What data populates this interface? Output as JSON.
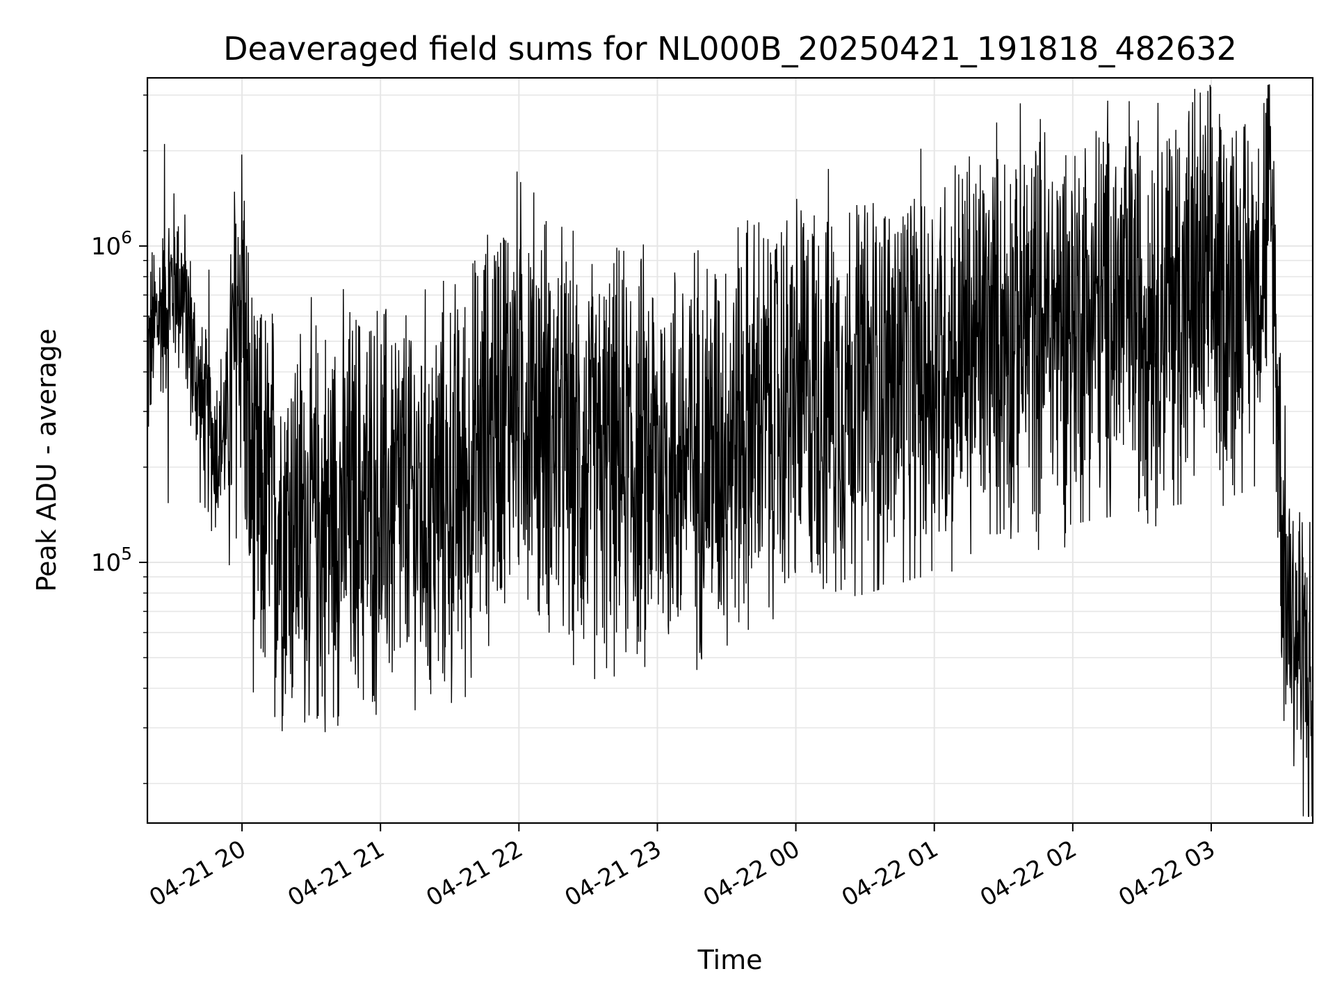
{
  "chart_data": {
    "type": "line",
    "title": "Deaveraged field sums for NL000B_20250421_191818_482632",
    "xlabel": "Time",
    "ylabel": "Peak ADU - average",
    "yscale": "log",
    "grid": true,
    "line_color": "#000000",
    "grid_color": "#e6e6e6",
    "xlim": [
      "2025-04-21 19:19",
      "2025-04-22 03:44"
    ],
    "ylim": [
      15000,
      3400000
    ],
    "x_ticks": [
      {
        "value": "2025-04-21 20:00",
        "label": "04-21 20"
      },
      {
        "value": "2025-04-21 21:00",
        "label": "04-21 21"
      },
      {
        "value": "2025-04-21 22:00",
        "label": "04-21 22"
      },
      {
        "value": "2025-04-21 23:00",
        "label": "04-21 23"
      },
      {
        "value": "2025-04-22 00:00",
        "label": "04-22 00"
      },
      {
        "value": "2025-04-22 01:00",
        "label": "04-22 01"
      },
      {
        "value": "2025-04-22 02:00",
        "label": "04-22 02"
      },
      {
        "value": "2025-04-22 03:00",
        "label": "04-22 03"
      }
    ],
    "y_ticks": [
      {
        "value": 100000,
        "base": "10",
        "exp": "5"
      },
      {
        "value": 1000000,
        "base": "10",
        "exp": "6"
      }
    ],
    "series": [
      {
        "points": [
          [
            "2025-04-21 19:19",
            420000
          ],
          [
            "2025-04-21 19:22",
            560000
          ],
          [
            "2025-04-21 19:25",
            620000
          ],
          [
            "2025-04-21 19:28",
            700000
          ],
          [
            "2025-04-21 19:31",
            800000
          ],
          [
            "2025-04-21 19:34",
            720000
          ],
          [
            "2025-04-21 19:37",
            550000
          ],
          [
            "2025-04-21 19:40",
            380000
          ],
          [
            "2025-04-21 19:43",
            290000
          ],
          [
            "2025-04-21 19:46",
            260000
          ],
          [
            "2025-04-21 19:49",
            230000
          ],
          [
            "2025-04-21 19:52",
            250000
          ],
          [
            "2025-04-21 19:55",
            320000
          ],
          [
            "2025-04-21 19:58",
            600000
          ],
          [
            "2025-04-21 20:00",
            820000
          ],
          [
            "2025-04-21 20:03",
            210000
          ],
          [
            "2025-04-21 20:06",
            160000
          ],
          [
            "2025-04-21 20:09",
            150000
          ],
          [
            "2025-04-21 20:12",
            155000
          ],
          [
            "2025-04-21 20:15",
            145000
          ],
          [
            "2025-04-21 20:18",
            140000
          ],
          [
            "2025-04-21 20:21",
            135000
          ],
          [
            "2025-04-21 20:24",
            140000
          ],
          [
            "2025-04-21 20:27",
            130000
          ],
          [
            "2025-04-21 20:30",
            135000
          ],
          [
            "2025-04-21 20:33",
            128000
          ],
          [
            "2025-04-21 20:36",
            132000
          ],
          [
            "2025-04-21 20:40",
            150000
          ],
          [
            "2025-04-21 20:45",
            145000
          ],
          [
            "2025-04-21 20:50",
            150000
          ],
          [
            "2025-04-21 20:55",
            155000
          ],
          [
            "2025-04-21 21:00",
            148000
          ],
          [
            "2025-04-21 21:05",
            152000
          ],
          [
            "2025-04-21 21:10",
            160000
          ],
          [
            "2025-04-21 21:15",
            155000
          ],
          [
            "2025-04-21 21:20",
            150000
          ],
          [
            "2025-04-21 21:25",
            158000
          ],
          [
            "2025-04-21 21:30",
            162000
          ],
          [
            "2025-04-21 21:35",
            175000
          ],
          [
            "2025-04-21 21:40",
            200000
          ],
          [
            "2025-04-21 21:45",
            240000
          ],
          [
            "2025-04-21 21:50",
            300000
          ],
          [
            "2025-04-21 21:55",
            350000
          ],
          [
            "2025-04-21 22:00",
            370000
          ],
          [
            "2025-04-21 22:05",
            340000
          ],
          [
            "2025-04-21 22:10",
            300000
          ],
          [
            "2025-04-21 22:15",
            260000
          ],
          [
            "2025-04-21 22:20",
            230000
          ],
          [
            "2025-04-21 22:25",
            210000
          ],
          [
            "2025-04-21 22:30",
            200000
          ],
          [
            "2025-04-21 22:40",
            205000
          ],
          [
            "2025-04-21 22:50",
            210000
          ],
          [
            "2025-04-21 23:00",
            215000
          ],
          [
            "2025-04-21 23:10",
            220000
          ],
          [
            "2025-04-21 23:20",
            230000
          ],
          [
            "2025-04-21 23:30",
            250000
          ],
          [
            "2025-04-21 23:40",
            280000
          ],
          [
            "2025-04-21 23:50",
            300000
          ],
          [
            "2025-04-22 00:00",
            330000
          ],
          [
            "2025-04-22 00:10",
            340000
          ],
          [
            "2025-04-22 00:20",
            350000
          ],
          [
            "2025-04-22 00:30",
            360000
          ],
          [
            "2025-04-22 00:40",
            380000
          ],
          [
            "2025-04-22 00:50",
            400000
          ],
          [
            "2025-04-22 01:00",
            430000
          ],
          [
            "2025-04-22 01:10",
            460000
          ],
          [
            "2025-04-22 01:20",
            500000
          ],
          [
            "2025-04-22 01:30",
            530000
          ],
          [
            "2025-04-22 01:40",
            560000
          ],
          [
            "2025-04-22 01:50",
            580000
          ],
          [
            "2025-04-22 02:00",
            600000
          ],
          [
            "2025-04-22 02:10",
            620000
          ],
          [
            "2025-04-22 02:20",
            640000
          ],
          [
            "2025-04-22 02:30",
            660000
          ],
          [
            "2025-04-22 02:40",
            680000
          ],
          [
            "2025-04-22 02:50",
            700000
          ],
          [
            "2025-04-22 03:00",
            720000
          ],
          [
            "2025-04-22 03:10",
            740000
          ],
          [
            "2025-04-22 03:15",
            760000
          ],
          [
            "2025-04-22 03:20",
            800000
          ],
          [
            "2025-04-22 03:23",
            1100000
          ],
          [
            "2025-04-22 03:25",
            1300000
          ],
          [
            "2025-04-22 03:27",
            900000
          ],
          [
            "2025-04-22 03:29",
            300000
          ],
          [
            "2025-04-22 03:31",
            120000
          ],
          [
            "2025-04-22 03:33",
            80000
          ],
          [
            "2025-04-22 03:35",
            70000
          ],
          [
            "2025-04-22 03:37",
            60000
          ],
          [
            "2025-04-22 03:39",
            55000
          ],
          [
            "2025-04-22 03:41",
            50000
          ],
          [
            "2025-04-22 03:43",
            40000
          ],
          [
            "2025-04-22 03:44",
            21000
          ]
        ]
      }
    ]
  }
}
